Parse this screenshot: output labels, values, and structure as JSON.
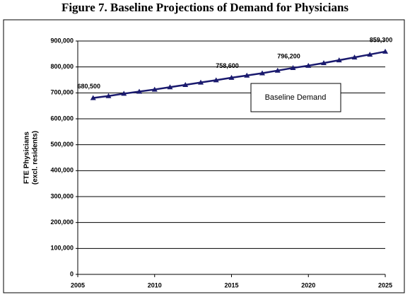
{
  "chart_data": {
    "type": "line",
    "title": "Figure 7. Baseline Projections of Demand for Physicians",
    "ylabel": [
      "FTE Physicians",
      "(excl. residents)"
    ],
    "x": [
      2006,
      2007,
      2008,
      2009,
      2010,
      2011,
      2012,
      2013,
      2014,
      2015,
      2016,
      2017,
      2018,
      2019,
      2020,
      2021,
      2022,
      2023,
      2024,
      2025
    ],
    "series": [
      {
        "name": "Baseline Demand",
        "color": "#1a1a6e",
        "values": [
          680500,
          688000,
          697000,
          705000,
          713000,
          722000,
          731000,
          740000,
          749000,
          758600,
          767000,
          776000,
          786000,
          796200,
          805000,
          815000,
          826000,
          837000,
          848000,
          859300
        ],
        "value_labels": [
          "680,500",
          null,
          null,
          null,
          null,
          null,
          null,
          null,
          null,
          "758,600",
          null,
          null,
          null,
          "796,200",
          null,
          null,
          null,
          null,
          null,
          "859,300"
        ]
      }
    ],
    "xlim": [
      2005,
      2025
    ],
    "xticks": [
      2005,
      2010,
      2015,
      2020,
      2025
    ],
    "ylim": [
      0,
      900000
    ],
    "yticks": [
      0,
      {
        "value": 100000,
        "label": "100,000"
      },
      {
        "value": 200000,
        "label": "200,000"
      },
      {
        "value": 300000,
        "label": "300,000"
      },
      {
        "value": 400000,
        "label": "400,000"
      },
      {
        "value": 500000,
        "label": "500,000"
      },
      {
        "value": 600000,
        "label": "600,000"
      },
      {
        "value": 700000,
        "label": "700,000"
      },
      {
        "value": 800000,
        "label": "800,000"
      },
      {
        "value": 900000,
        "label": "900,000"
      }
    ],
    "grid": true
  }
}
